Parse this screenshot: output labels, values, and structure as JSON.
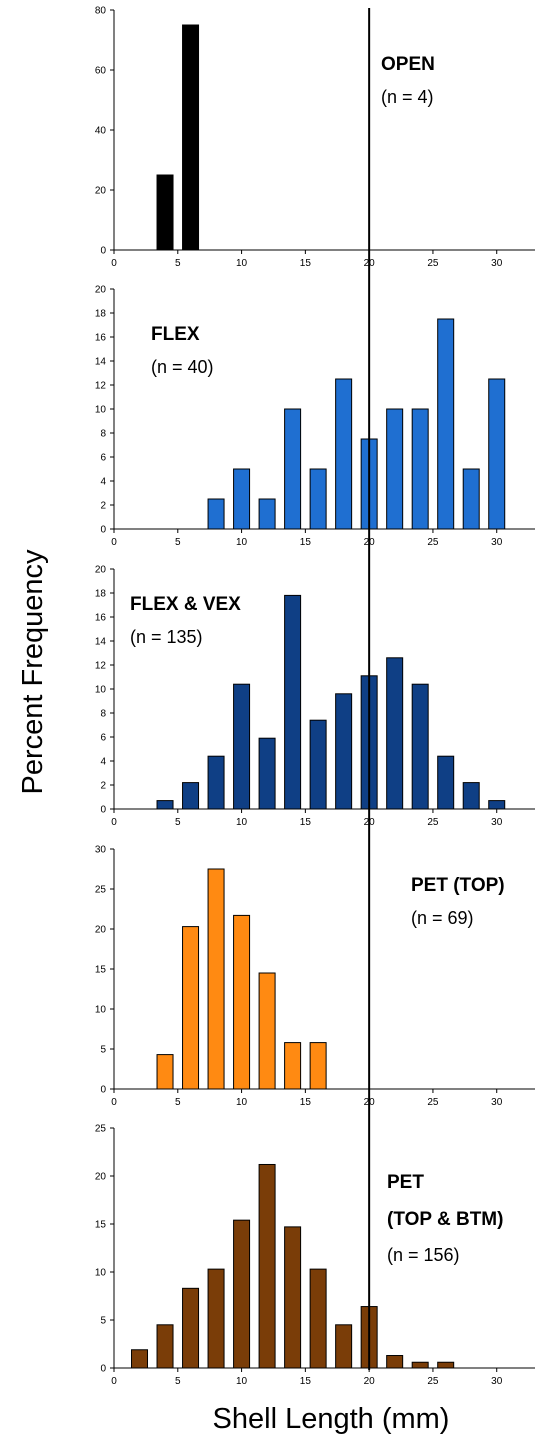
{
  "figure": {
    "ylabel": "Percent Frequency",
    "xlabel": "Shell Length (mm)"
  },
  "chart_data": [
    {
      "type": "bar",
      "title_lines": [
        "OPEN"
      ],
      "n_label": "(n = 4)",
      "color": "#000000",
      "xlim": [
        0,
        33
      ],
      "ylim": [
        0,
        80
      ],
      "xticks": [
        0,
        5,
        10,
        15,
        20,
        25,
        30
      ],
      "yticks": [
        0,
        20,
        40,
        60,
        80
      ],
      "x": [
        4,
        6
      ],
      "values": [
        25,
        75
      ]
    },
    {
      "type": "bar",
      "title_lines": [
        "FLEX"
      ],
      "n_label": "(n = 40)",
      "color": "#1F6FD1",
      "xlim": [
        0,
        33
      ],
      "ylim": [
        0,
        20
      ],
      "xticks": [
        0,
        5,
        10,
        15,
        20,
        25,
        30
      ],
      "yticks": [
        0,
        2,
        4,
        6,
        8,
        10,
        12,
        14,
        16,
        18,
        20
      ],
      "x": [
        8,
        10,
        12,
        14,
        16,
        18,
        20,
        22,
        24,
        26,
        28,
        30
      ],
      "values": [
        2.5,
        5,
        2.5,
        10,
        5,
        12.5,
        7.5,
        10,
        10,
        17.5,
        5,
        12.5
      ]
    },
    {
      "type": "bar",
      "title_lines": [
        "FLEX & VEX"
      ],
      "n_label": "(n = 135)",
      "color": "#0F3F85",
      "xlim": [
        0,
        33
      ],
      "ylim": [
        0,
        20
      ],
      "xticks": [
        0,
        5,
        10,
        15,
        20,
        25,
        30
      ],
      "yticks": [
        0,
        2,
        4,
        6,
        8,
        10,
        12,
        14,
        16,
        18,
        20
      ],
      "x": [
        4,
        6,
        8,
        10,
        12,
        14,
        16,
        18,
        20,
        22,
        24,
        26,
        28,
        30
      ],
      "values": [
        0.7,
        2.2,
        4.4,
        10.4,
        5.9,
        17.8,
        7.4,
        9.6,
        11.1,
        12.6,
        10.4,
        4.4,
        2.2,
        0.7
      ]
    },
    {
      "type": "bar",
      "title_lines": [
        "PET (TOP)"
      ],
      "n_label": "(n = 69)",
      "color": "#FF8A12",
      "xlim": [
        0,
        33
      ],
      "ylim": [
        0,
        30
      ],
      "xticks": [
        0,
        5,
        10,
        15,
        20,
        25,
        30
      ],
      "yticks": [
        0,
        5,
        10,
        15,
        20,
        25,
        30
      ],
      "x": [
        4,
        6,
        8,
        10,
        12,
        14,
        16
      ],
      "values": [
        4.3,
        20.3,
        27.5,
        21.7,
        14.5,
        5.8,
        5.8
      ]
    },
    {
      "type": "bar",
      "title_lines": [
        "PET",
        "(TOP & BTM)"
      ],
      "n_label": "(n = 156)",
      "color": "#7A3D08",
      "xlim": [
        0,
        33
      ],
      "ylim": [
        0,
        25
      ],
      "xticks": [
        0,
        5,
        10,
        15,
        20,
        25,
        30
      ],
      "yticks": [
        0,
        5,
        10,
        15,
        20,
        25
      ],
      "x": [
        2,
        4,
        6,
        8,
        10,
        12,
        14,
        16,
        18,
        20,
        22,
        24,
        26
      ],
      "values": [
        1.9,
        4.5,
        8.3,
        10.3,
        15.4,
        21.2,
        14.7,
        10.3,
        4.5,
        6.4,
        1.3,
        0.6,
        0.6
      ]
    }
  ],
  "reference_line": {
    "x": 20,
    "color": "#000000"
  }
}
